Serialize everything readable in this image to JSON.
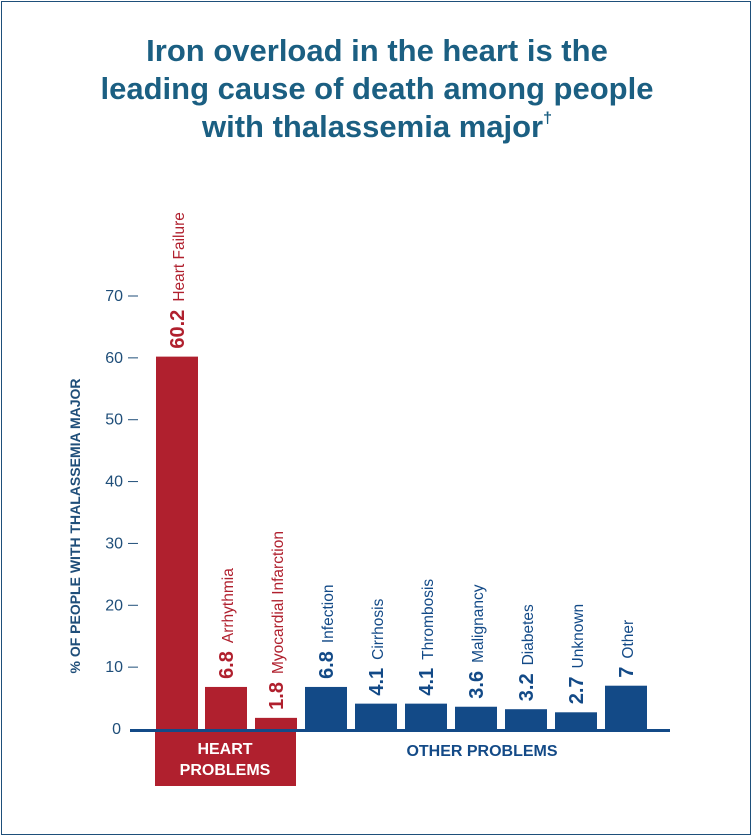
{
  "title_line1": "Iron overload in the heart is the",
  "title_line2": "leading cause of death among people",
  "title_line3": "with thalassemia major",
  "title_mark": "†",
  "colors": {
    "heart": "#b0202e",
    "other": "#134a87",
    "text": "#1f4e79",
    "title": "#1b5f82"
  },
  "chart_data": {
    "type": "bar",
    "ylabel": "% OF PEOPLE WITH THALASSEMIA MAJOR",
    "ylim": [
      0,
      70
    ],
    "yticks": [
      0,
      10,
      20,
      30,
      40,
      50,
      60,
      70
    ],
    "grid": false,
    "categories": [
      "Heart Failure",
      "Arrhythmia",
      "Myocardial Infarction",
      "Infection",
      "Cirrhosis",
      "Thrombosis",
      "Malignancy",
      "Diabetes",
      "Unknown",
      "Other"
    ],
    "values": [
      60.2,
      6.8,
      1.8,
      6.8,
      4.1,
      4.1,
      3.6,
      3.2,
      2.7,
      7
    ],
    "value_labels": [
      "60.2",
      "6.8",
      "1.8",
      "6.8",
      "4.1",
      "4.1",
      "3.6",
      "3.2",
      "2.7",
      "7"
    ],
    "groups": [
      {
        "label_line1": "HEART",
        "label_line2": "PROBLEMS",
        "start": 0,
        "end": 2
      },
      {
        "label_line1": "OTHER PROBLEMS",
        "label_line2": "",
        "start": 3,
        "end": 9
      }
    ]
  }
}
